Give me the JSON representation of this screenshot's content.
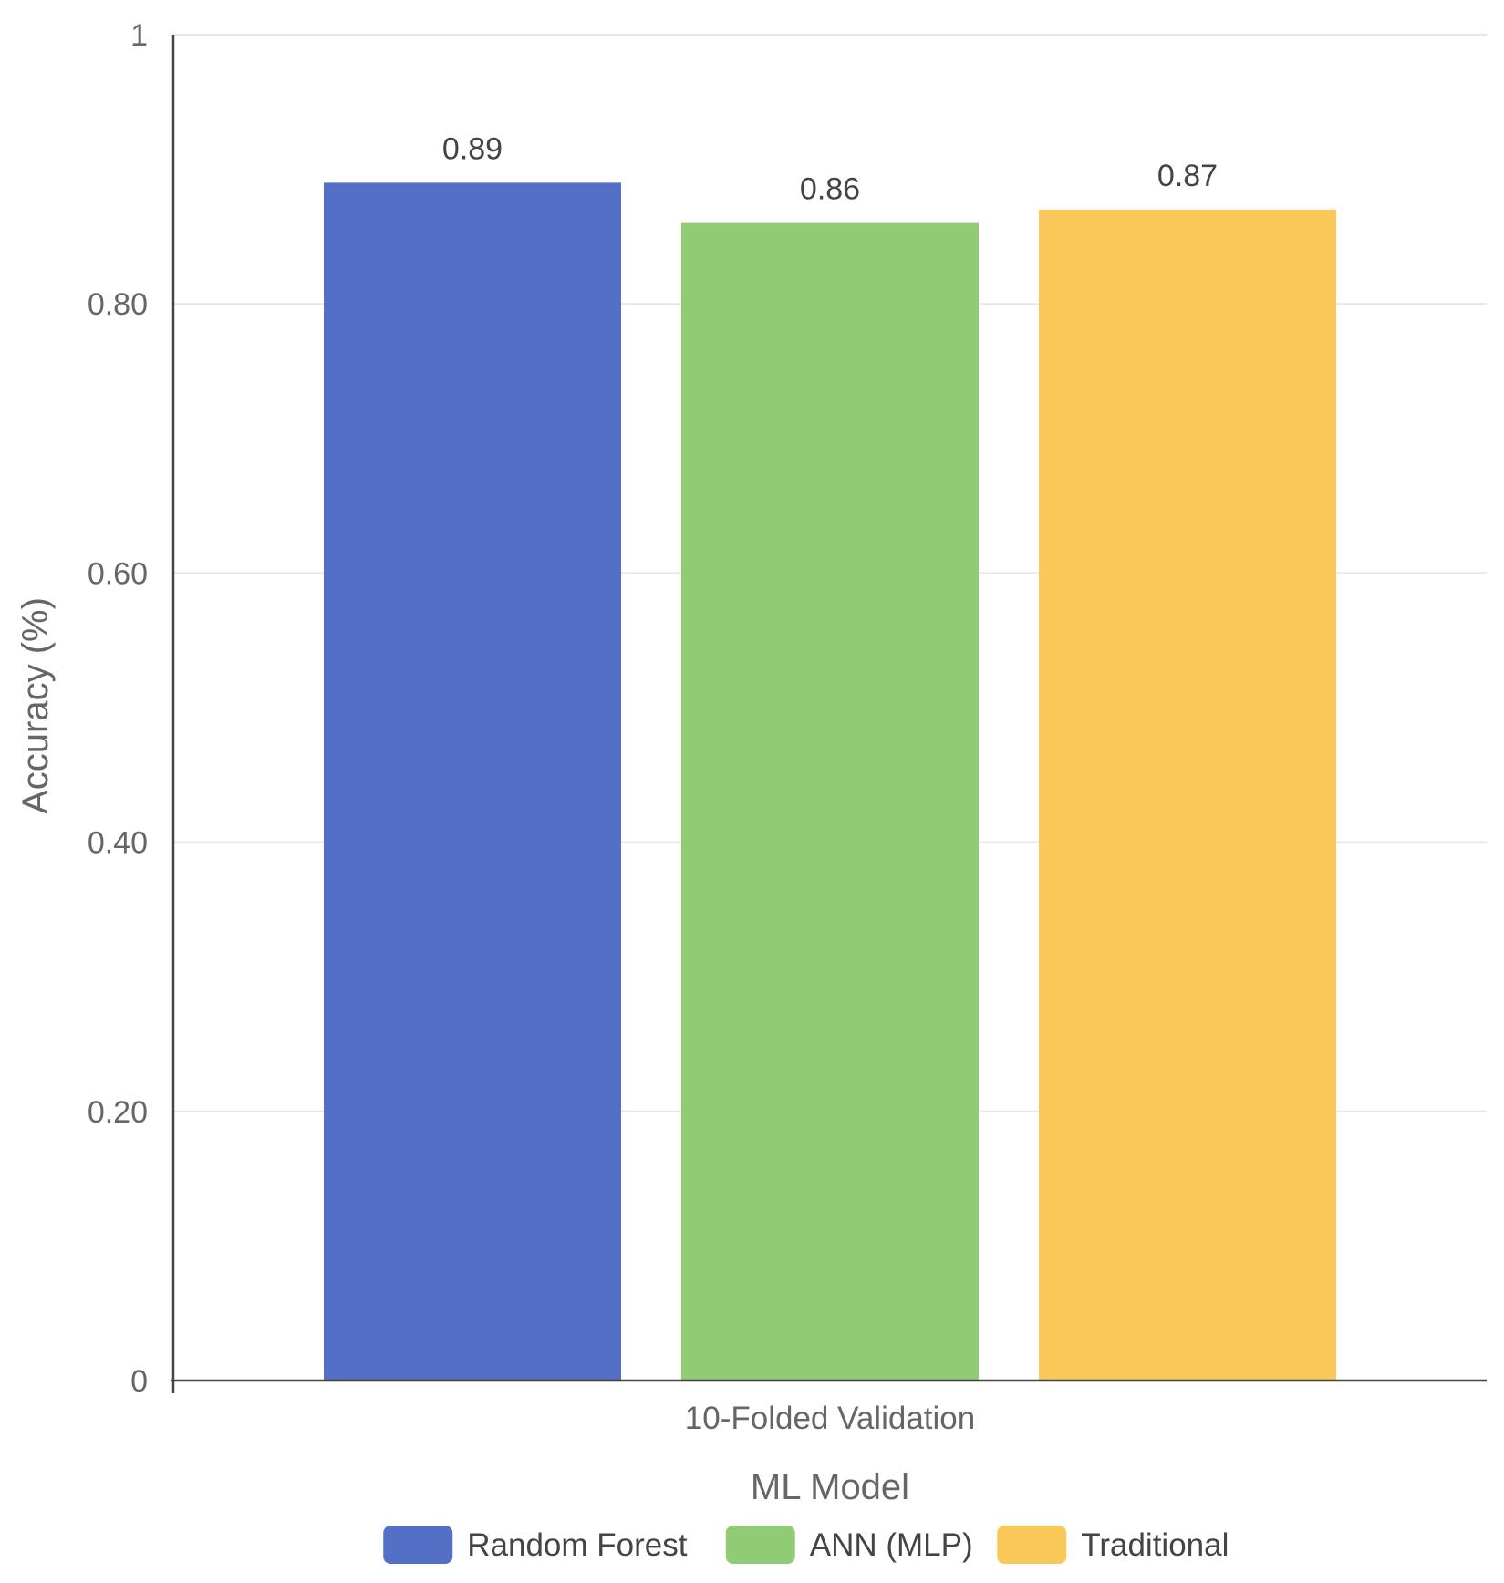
{
  "chart_data": {
    "type": "bar",
    "categories": [
      "10-Folded Validation"
    ],
    "series": [
      {
        "name": "Random Forest",
        "values": [
          0.89
        ],
        "label": "0.89",
        "color": "#5470c6"
      },
      {
        "name": "ANN (MLP)",
        "values": [
          0.86
        ],
        "label": "0.86",
        "color": "#91cc75"
      },
      {
        "name": "Traditional",
        "values": [
          0.87
        ],
        "label": "0.87",
        "color": "#f9c859"
      }
    ],
    "xlabel": "ML Model",
    "ylabel": "Accuracy (%)",
    "ylim": [
      0,
      1
    ],
    "yticks": [
      0,
      0.2,
      0.4,
      0.6,
      0.8,
      1
    ],
    "ytick_labels": [
      "0",
      "0.20",
      "0.40",
      "0.60",
      "0.80",
      "1"
    ],
    "grid": true,
    "legend": "bottom-center"
  }
}
